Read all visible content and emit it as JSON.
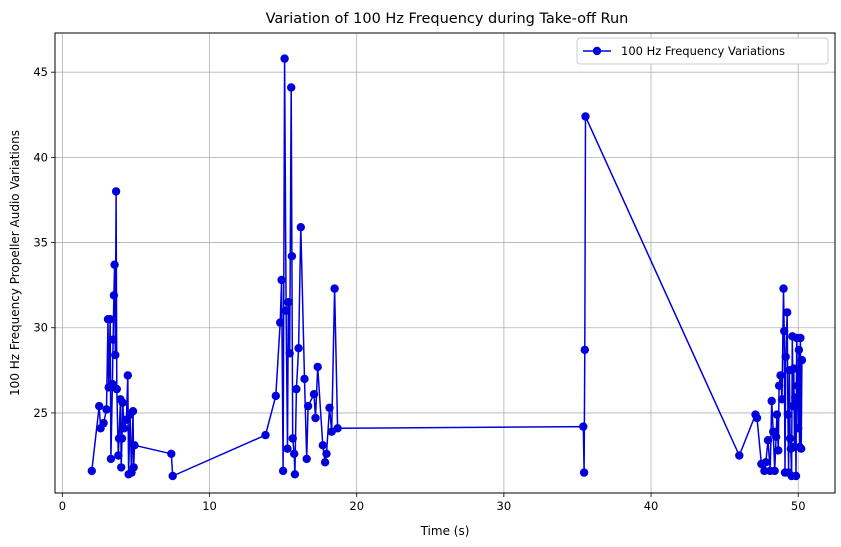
{
  "chart_data": {
    "type": "line",
    "title": "Variation of 100 Hz Frequency during Take-off Run",
    "xlabel": "Time (s)",
    "ylabel": "100 Hz Frequency Propeller Audio Variations",
    "xlim": [
      -0.5,
      52.5
    ],
    "ylim": [
      20.3,
      47.3
    ],
    "xticks": [
      0,
      10,
      20,
      30,
      40,
      50
    ],
    "yticks": [
      25,
      30,
      35,
      40,
      45
    ],
    "grid": true,
    "legend_position": "top-right",
    "series": [
      {
        "name": "100 Hz Frequency Variations",
        "color": "#0000dd",
        "marker": "circle",
        "points": [
          [
            2.0,
            21.6
          ],
          [
            2.5,
            25.4
          ],
          [
            2.6,
            24.1
          ],
          [
            2.8,
            24.4
          ],
          [
            3.0,
            25.2
          ],
          [
            3.1,
            30.5
          ],
          [
            3.15,
            26.5
          ],
          [
            3.25,
            30.5
          ],
          [
            3.3,
            22.3
          ],
          [
            3.4,
            26.7
          ],
          [
            3.45,
            29.3
          ],
          [
            3.5,
            31.9
          ],
          [
            3.55,
            33.7
          ],
          [
            3.6,
            28.4
          ],
          [
            3.65,
            38.0
          ],
          [
            3.7,
            26.4
          ],
          [
            3.8,
            22.5
          ],
          [
            3.85,
            23.5
          ],
          [
            3.95,
            25.8
          ],
          [
            4.0,
            21.8
          ],
          [
            4.05,
            23.5
          ],
          [
            4.1,
            25.6
          ],
          [
            4.2,
            24.1
          ],
          [
            4.35,
            24.6
          ],
          [
            4.45,
            27.2
          ],
          [
            4.5,
            21.4
          ],
          [
            4.6,
            24.9
          ],
          [
            4.7,
            21.5
          ],
          [
            4.8,
            25.1
          ],
          [
            4.85,
            21.8
          ],
          [
            4.9,
            23.1
          ],
          [
            7.4,
            22.6
          ],
          [
            7.5,
            21.3
          ],
          [
            13.8,
            23.7
          ],
          [
            14.5,
            26.0
          ],
          [
            14.8,
            30.3
          ],
          [
            14.9,
            32.8
          ],
          [
            15.0,
            21.6
          ],
          [
            15.1,
            45.8
          ],
          [
            15.2,
            31.0
          ],
          [
            15.3,
            22.9
          ],
          [
            15.35,
            31.5
          ],
          [
            15.45,
            28.5
          ],
          [
            15.55,
            44.1
          ],
          [
            15.6,
            34.2
          ],
          [
            15.65,
            23.5
          ],
          [
            15.75,
            22.6
          ],
          [
            15.8,
            21.4
          ],
          [
            15.9,
            26.4
          ],
          [
            16.05,
            28.8
          ],
          [
            16.2,
            35.9
          ],
          [
            16.45,
            27.0
          ],
          [
            16.6,
            22.3
          ],
          [
            16.7,
            25.4
          ],
          [
            17.1,
            26.1
          ],
          [
            17.2,
            24.7
          ],
          [
            17.35,
            27.7
          ],
          [
            17.7,
            23.1
          ],
          [
            17.85,
            22.1
          ],
          [
            17.95,
            22.6
          ],
          [
            18.15,
            25.3
          ],
          [
            18.3,
            23.9
          ],
          [
            18.5,
            32.3
          ],
          [
            18.7,
            24.1
          ],
          [
            35.4,
            24.2
          ],
          [
            35.45,
            21.5
          ],
          [
            35.5,
            28.7
          ],
          [
            35.55,
            42.4
          ],
          [
            46.0,
            22.5
          ],
          [
            47.1,
            24.9
          ],
          [
            47.2,
            24.7
          ],
          [
            47.5,
            22.0
          ],
          [
            47.7,
            21.6
          ],
          [
            47.8,
            22.1
          ],
          [
            47.95,
            23.4
          ],
          [
            48.1,
            21.6
          ],
          [
            48.2,
            25.7
          ],
          [
            48.3,
            23.9
          ],
          [
            48.4,
            21.6
          ],
          [
            48.5,
            23.6
          ],
          [
            48.55,
            24.9
          ],
          [
            48.65,
            22.8
          ],
          [
            48.7,
            26.6
          ],
          [
            48.8,
            27.2
          ],
          [
            48.9,
            25.8
          ],
          [
            49.0,
            32.3
          ],
          [
            49.05,
            29.8
          ],
          [
            49.1,
            21.5
          ],
          [
            49.15,
            28.3
          ],
          [
            49.25,
            30.9
          ],
          [
            49.3,
            24.9
          ],
          [
            49.35,
            21.5
          ],
          [
            49.4,
            27.5
          ],
          [
            49.45,
            23.5
          ],
          [
            49.5,
            22.9
          ],
          [
            49.55,
            21.3
          ],
          [
            49.6,
            29.5
          ],
          [
            49.65,
            25.4
          ],
          [
            49.7,
            27.6
          ],
          [
            49.75,
            23.0
          ],
          [
            49.8,
            25.9
          ],
          [
            49.85,
            21.3
          ],
          [
            49.9,
            29.4
          ],
          [
            49.95,
            26.6
          ],
          [
            50.0,
            24.1
          ],
          [
            50.05,
            28.7
          ],
          [
            50.1,
            23.0
          ],
          [
            50.15,
            29.4
          ],
          [
            50.2,
            22.9
          ],
          [
            50.25,
            28.1
          ]
        ]
      }
    ]
  }
}
